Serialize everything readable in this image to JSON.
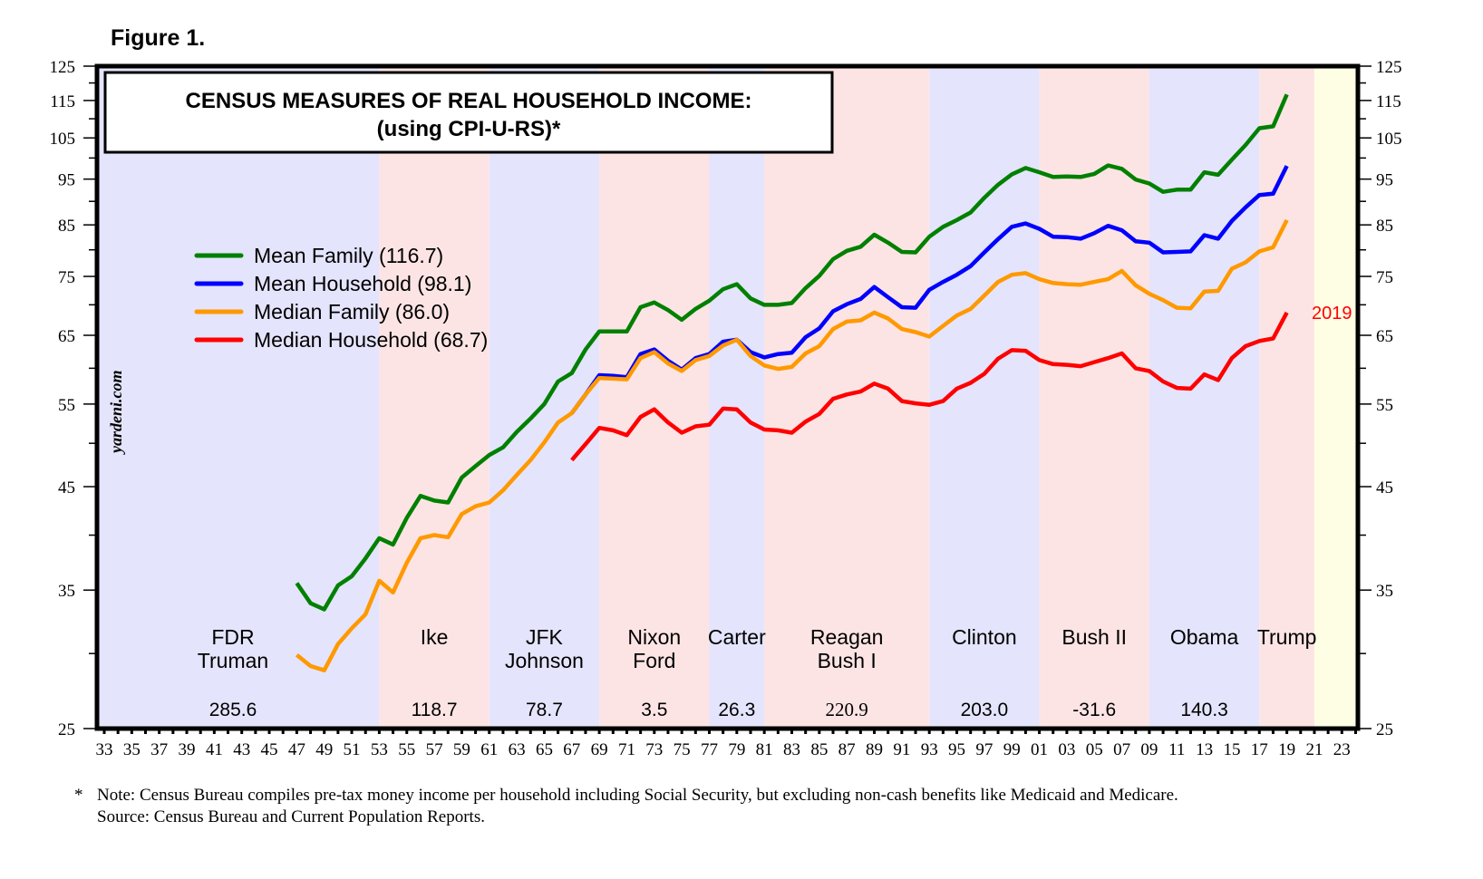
{
  "figure_label": "Figure 1.",
  "watermark": "yardeni.com",
  "footnote": {
    "star": "*",
    "note": "Note: Census Bureau compiles pre-tax money income per household including Social Security, but excluding non-cash benefits like Medicaid and Medicare.",
    "source": "Source: Census Bureau and Current Population Reports."
  },
  "chart_data": {
    "type": "line",
    "title": "CENSUS MEASURES OF REAL HOUSEHOLD INCOME:",
    "subtitle": "(using CPI-U-RS)*",
    "xlabel": "",
    "ylabel": "",
    "y_scale": "log",
    "ylim": [
      25,
      125
    ],
    "xlim": [
      1932.5,
      2024.0
    ],
    "grid": false,
    "legend_position": "upper-left",
    "y_ticks": [
      25,
      35,
      45,
      55,
      65,
      75,
      85,
      95,
      105,
      115,
      125
    ],
    "y_minor_ticks": [
      30,
      40,
      50,
      60,
      70,
      80,
      90,
      100,
      110,
      120
    ],
    "x_tick_labels": [
      "33",
      "35",
      "37",
      "39",
      "41",
      "43",
      "45",
      "47",
      "49",
      "51",
      "53",
      "55",
      "57",
      "59",
      "61",
      "63",
      "65",
      "67",
      "69",
      "71",
      "73",
      "75",
      "77",
      "79",
      "81",
      "83",
      "85",
      "87",
      "89",
      "91",
      "93",
      "95",
      "97",
      "99",
      "01",
      "03",
      "05",
      "07",
      "09",
      "11",
      "13",
      "15",
      "17",
      "19",
      "21",
      "23"
    ],
    "end_label": {
      "text": "2019",
      "series": "Median Household",
      "color": "#ff0000"
    },
    "series": [
      {
        "name": "Mean Family",
        "legend": "Mean Family (116.7)",
        "color": "#008000",
        "start_year": 1947,
        "values": [
          35.6,
          33.9,
          33.4,
          35.4,
          36.2,
          37.8,
          39.7,
          39.1,
          41.7,
          44.0,
          43.5,
          43.3,
          46.0,
          47.3,
          48.6,
          49.5,
          51.4,
          53.1,
          55.0,
          58.1,
          59.3,
          62.8,
          65.6,
          65.6,
          65.6,
          69.6,
          70.4,
          69.1,
          67.5,
          69.3,
          70.7,
          72.7,
          73.6,
          71.1,
          70.0,
          70.0,
          70.3,
          72.9,
          75.1,
          78.2,
          79.8,
          80.6,
          83.0,
          81.4,
          79.6,
          79.5,
          82.6,
          84.6,
          86.0,
          87.6,
          90.8,
          93.7,
          96.1,
          97.6,
          96.6,
          95.5,
          95.6,
          95.5,
          96.2,
          98.2,
          97.4,
          94.9,
          94.0,
          92.1,
          92.6,
          92.6,
          96.6,
          96.0,
          99.6,
          103.2,
          107.5,
          108.0,
          116.7
        ]
      },
      {
        "name": "Mean Household",
        "legend": "Mean Household (98.1)",
        "color": "#0000ff",
        "start_year": 1967,
        "values": [
          53.8,
          56.3,
          59.0,
          58.9,
          58.7,
          62.1,
          62.8,
          61.1,
          59.8,
          61.5,
          62.1,
          64.0,
          64.3,
          62.4,
          61.6,
          62.1,
          62.3,
          64.7,
          66.1,
          68.9,
          70.1,
          71.0,
          73.1,
          71.3,
          69.6,
          69.5,
          72.6,
          74.0,
          75.3,
          76.9,
          79.5,
          82.1,
          84.6,
          85.3,
          84.2,
          82.6,
          82.5,
          82.2,
          83.3,
          84.8,
          83.9,
          81.7,
          81.4,
          79.5,
          79.6,
          79.7,
          82.9,
          82.2,
          85.8,
          88.7,
          91.4,
          91.7,
          98.1
        ]
      },
      {
        "name": "Median Family",
        "legend": "Median Family (86.0)",
        "color": "#ff9900",
        "start_year": 1947,
        "values": [
          29.9,
          29.1,
          28.8,
          30.7,
          31.9,
          33.0,
          35.8,
          34.8,
          37.4,
          39.7,
          40.0,
          39.8,
          42.1,
          42.9,
          43.3,
          44.6,
          46.3,
          48.0,
          50.1,
          52.6,
          53.8,
          56.3,
          58.6,
          58.5,
          58.4,
          61.5,
          62.4,
          60.7,
          59.6,
          61.2,
          61.8,
          63.4,
          64.3,
          61.8,
          60.4,
          59.9,
          60.2,
          62.2,
          63.3,
          66.0,
          67.2,
          67.4,
          68.7,
          67.7,
          66.0,
          65.5,
          64.8,
          66.5,
          68.2,
          69.3,
          71.6,
          74.0,
          75.3,
          75.6,
          74.5,
          73.8,
          73.6,
          73.5,
          74.0,
          74.5,
          76.0,
          73.4,
          71.9,
          70.8,
          69.5,
          69.4,
          72.3,
          72.4,
          76.4,
          77.6,
          79.7,
          80.5,
          86.0
        ]
      },
      {
        "name": "Median Household",
        "legend": "Median Household (68.7)",
        "color": "#ff0000",
        "start_year": 1967,
        "values": [
          48.0,
          49.9,
          51.9,
          51.6,
          51.0,
          53.3,
          54.3,
          52.6,
          51.3,
          52.1,
          52.3,
          54.4,
          54.3,
          52.6,
          51.7,
          51.6,
          51.3,
          52.7,
          53.7,
          55.7,
          56.3,
          56.7,
          57.8,
          57.1,
          55.4,
          55.1,
          54.9,
          55.4,
          57.1,
          57.9,
          59.2,
          61.4,
          62.7,
          62.6,
          61.2,
          60.6,
          60.5,
          60.3,
          60.9,
          61.5,
          62.2,
          60.0,
          59.6,
          58.1,
          57.2,
          57.1,
          59.1,
          58.3,
          61.5,
          63.3,
          64.1,
          64.5,
          68.7
        ]
      }
    ],
    "presidencies": [
      {
        "label": [
          "FDR",
          "Truman"
        ],
        "party": "D",
        "start": 1932.5,
        "end": 1953.0,
        "value": "285.6"
      },
      {
        "label": [
          "Ike"
        ],
        "party": "R",
        "start": 1953.0,
        "end": 1961.0,
        "value": "118.7"
      },
      {
        "label": [
          "JFK",
          "Johnson"
        ],
        "party": "D",
        "start": 1961.0,
        "end": 1969.0,
        "value": "78.7"
      },
      {
        "label": [
          "Nixon",
          "Ford"
        ],
        "party": "R",
        "start": 1969.0,
        "end": 1977.0,
        "value": "3.5"
      },
      {
        "label": [
          "Carter"
        ],
        "party": "D",
        "start": 1977.0,
        "end": 1981.0,
        "value": "26.3"
      },
      {
        "label": [
          "Reagan",
          "Bush I"
        ],
        "party": "R",
        "start": 1981.0,
        "end": 1993.0,
        "value": "220.9"
      },
      {
        "label": [
          "Clinton"
        ],
        "party": "D",
        "start": 1993.0,
        "end": 2001.0,
        "value": "203.0"
      },
      {
        "label": [
          "Bush II"
        ],
        "party": "R",
        "start": 2001.0,
        "end": 2009.0,
        "value": "-31.6"
      },
      {
        "label": [
          "Obama"
        ],
        "party": "D",
        "start": 2009.0,
        "end": 2017.0,
        "value": "140.3"
      },
      {
        "label": [
          "Trump"
        ],
        "party": "R",
        "start": 2017.0,
        "end": 2021.0,
        "value": ""
      },
      {
        "label": [],
        "party": "future",
        "start": 2021.0,
        "end": 2024.0,
        "value": ""
      }
    ],
    "band_colors": {
      "D": "#e4e4fc",
      "R": "#fde4e4",
      "future": "#fefee4"
    }
  }
}
